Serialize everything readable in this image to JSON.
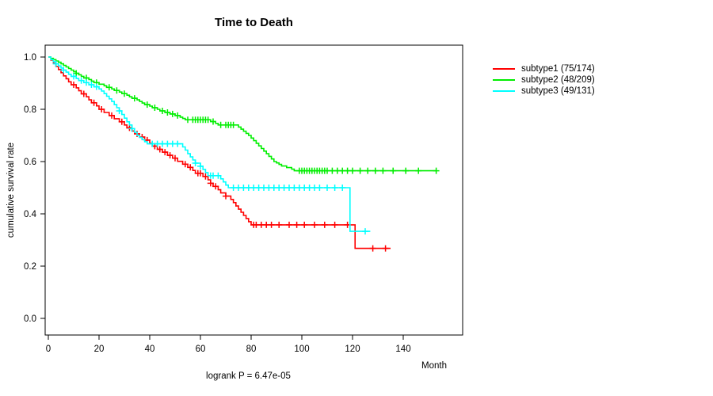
{
  "chart_data": {
    "type": "line",
    "subtype": "kaplan-meier-step-curves",
    "title": "Time to Death",
    "xlabel": "Month",
    "ylabel": "cumulative survival rate",
    "xlim": [
      0,
      155
    ],
    "ylim": [
      0.0,
      1.0
    ],
    "x_ticks": [
      "0",
      "20",
      "40",
      "60",
      "80",
      "100",
      "120",
      "140"
    ],
    "y_ticks": [
      "0.0",
      "0.2",
      "0.4",
      "0.6",
      "0.8",
      "1.0"
    ],
    "annotation": "logrank P = 6.47e-05",
    "legend_position": "right",
    "grid": false,
    "series": [
      {
        "name": "subtype1 (75/174)",
        "color": "#ff0000",
        "steps": [
          [
            0,
            1.0
          ],
          [
            1,
            0.988
          ],
          [
            2,
            0.976
          ],
          [
            3,
            0.964
          ],
          [
            4,
            0.952
          ],
          [
            5,
            0.94
          ],
          [
            6,
            0.928
          ],
          [
            7,
            0.917
          ],
          [
            8,
            0.905
          ],
          [
            9,
            0.894
          ],
          [
            11,
            0.882
          ],
          [
            12,
            0.871
          ],
          [
            13,
            0.859
          ],
          [
            15,
            0.848
          ],
          [
            16,
            0.836
          ],
          [
            17,
            0.825
          ],
          [
            19,
            0.813
          ],
          [
            20,
            0.8
          ],
          [
            22,
            0.788
          ],
          [
            24,
            0.776
          ],
          [
            26,
            0.764
          ],
          [
            28,
            0.752
          ],
          [
            30,
            0.74
          ],
          [
            31,
            0.729
          ],
          [
            33,
            0.717
          ],
          [
            34,
            0.706
          ],
          [
            36,
            0.694
          ],
          [
            38,
            0.682
          ],
          [
            40,
            0.67
          ],
          [
            41,
            0.659
          ],
          [
            43,
            0.647
          ],
          [
            45,
            0.636
          ],
          [
            47,
            0.624
          ],
          [
            49,
            0.613
          ],
          [
            51,
            0.601
          ],
          [
            53,
            0.59
          ],
          [
            55,
            0.578
          ],
          [
            57,
            0.566
          ],
          [
            58,
            0.555
          ],
          [
            61,
            0.543
          ],
          [
            63,
            0.53
          ],
          [
            64,
            0.517
          ],
          [
            65,
            0.505
          ],
          [
            67,
            0.492
          ],
          [
            68,
            0.48
          ],
          [
            70,
            0.468
          ],
          [
            72,
            0.455
          ],
          [
            73,
            0.443
          ],
          [
            74,
            0.43
          ],
          [
            75,
            0.418
          ],
          [
            76,
            0.406
          ],
          [
            77,
            0.394
          ],
          [
            78,
            0.382
          ],
          [
            79,
            0.37
          ],
          [
            80,
            0.358
          ],
          [
            121,
            0.268
          ],
          [
            135,
            0.268
          ]
        ],
        "censor_months": [
          10,
          14,
          18,
          21,
          25,
          29,
          32,
          35,
          37,
          39,
          42,
          44,
          46,
          48,
          50,
          54,
          56,
          59,
          60,
          62,
          64,
          66,
          70,
          81,
          82,
          84,
          86,
          88,
          91,
          95,
          98,
          101,
          105,
          109,
          113,
          118,
          128,
          133
        ]
      },
      {
        "name": "subtype2 (48/209)",
        "color": "#00ee00",
        "steps": [
          [
            0,
            1.0
          ],
          [
            1,
            0.995
          ],
          [
            2,
            0.99
          ],
          [
            3,
            0.985
          ],
          [
            4,
            0.98
          ],
          [
            5,
            0.974
          ],
          [
            6,
            0.968
          ],
          [
            7,
            0.962
          ],
          [
            8,
            0.956
          ],
          [
            9,
            0.95
          ],
          [
            10,
            0.944
          ],
          [
            11,
            0.938
          ],
          [
            12,
            0.932
          ],
          [
            13,
            0.926
          ],
          [
            14,
            0.92
          ],
          [
            16,
            0.914
          ],
          [
            17,
            0.908
          ],
          [
            18,
            0.902
          ],
          [
            20,
            0.896
          ],
          [
            22,
            0.89
          ],
          [
            23,
            0.884
          ],
          [
            25,
            0.878
          ],
          [
            26,
            0.872
          ],
          [
            28,
            0.866
          ],
          [
            29,
            0.86
          ],
          [
            31,
            0.854
          ],
          [
            32,
            0.848
          ],
          [
            33,
            0.842
          ],
          [
            35,
            0.836
          ],
          [
            36,
            0.83
          ],
          [
            37,
            0.824
          ],
          [
            38,
            0.818
          ],
          [
            40,
            0.812
          ],
          [
            41,
            0.806
          ],
          [
            43,
            0.8
          ],
          [
            44,
            0.794
          ],
          [
            46,
            0.788
          ],
          [
            48,
            0.782
          ],
          [
            50,
            0.776
          ],
          [
            52,
            0.77
          ],
          [
            53,
            0.765
          ],
          [
            54,
            0.76
          ],
          [
            64,
            0.753
          ],
          [
            66,
            0.746
          ],
          [
            67,
            0.74
          ],
          [
            75,
            0.732
          ],
          [
            76,
            0.724
          ],
          [
            77,
            0.716
          ],
          [
            78,
            0.708
          ],
          [
            79,
            0.7
          ],
          [
            80,
            0.69
          ],
          [
            81,
            0.68
          ],
          [
            82,
            0.67
          ],
          [
            83,
            0.66
          ],
          [
            84,
            0.65
          ],
          [
            85,
            0.64
          ],
          [
            86,
            0.63
          ],
          [
            87,
            0.62
          ],
          [
            88,
            0.61
          ],
          [
            89,
            0.6
          ],
          [
            90,
            0.595
          ],
          [
            91,
            0.589
          ],
          [
            92,
            0.583
          ],
          [
            94,
            0.577
          ],
          [
            96,
            0.571
          ],
          [
            97,
            0.565
          ],
          [
            153,
            0.565
          ]
        ],
        "censor_months": [
          11,
          15,
          19,
          24,
          27,
          30,
          34,
          39,
          42,
          45,
          47,
          49,
          51,
          55,
          57,
          58,
          59,
          60,
          61,
          62,
          63,
          65,
          68,
          70,
          71,
          72,
          73,
          99,
          100,
          101,
          102,
          103,
          104,
          105,
          106,
          107,
          108,
          109,
          110,
          112,
          114,
          116,
          118,
          120,
          123,
          126,
          129,
          132,
          136,
          141,
          146,
          153
        ]
      },
      {
        "name": "subtype3 (49/131)",
        "color": "#00ffff",
        "steps": [
          [
            0,
            1.0
          ],
          [
            1,
            0.99
          ],
          [
            2,
            0.982
          ],
          [
            3,
            0.974
          ],
          [
            4,
            0.966
          ],
          [
            5,
            0.958
          ],
          [
            6,
            0.95
          ],
          [
            7,
            0.942
          ],
          [
            8,
            0.934
          ],
          [
            9,
            0.926
          ],
          [
            11,
            0.918
          ],
          [
            12,
            0.91
          ],
          [
            14,
            0.902
          ],
          [
            16,
            0.894
          ],
          [
            18,
            0.886
          ],
          [
            20,
            0.878
          ],
          [
            21,
            0.87
          ],
          [
            22,
            0.86
          ],
          [
            23,
            0.85
          ],
          [
            24,
            0.84
          ],
          [
            25,
            0.83
          ],
          [
            26,
            0.818
          ],
          [
            27,
            0.806
          ],
          [
            28,
            0.794
          ],
          [
            29,
            0.78
          ],
          [
            30,
            0.766
          ],
          [
            31,
            0.752
          ],
          [
            32,
            0.74
          ],
          [
            33,
            0.726
          ],
          [
            34,
            0.712
          ],
          [
            35,
            0.7
          ],
          [
            36,
            0.692
          ],
          [
            37,
            0.684
          ],
          [
            38,
            0.676
          ],
          [
            39,
            0.668
          ],
          [
            53,
            0.656
          ],
          [
            54,
            0.644
          ],
          [
            55,
            0.63
          ],
          [
            56,
            0.618
          ],
          [
            57,
            0.606
          ],
          [
            58,
            0.594
          ],
          [
            60,
            0.582
          ],
          [
            61,
            0.57
          ],
          [
            62,
            0.558
          ],
          [
            63,
            0.546
          ],
          [
            68,
            0.534
          ],
          [
            69,
            0.522
          ],
          [
            70,
            0.51
          ],
          [
            71,
            0.5
          ],
          [
            119,
            0.333
          ],
          [
            127,
            0.333
          ]
        ],
        "censor_months": [
          3,
          6,
          10,
          13,
          15,
          17,
          19,
          28,
          33,
          41,
          43,
          45,
          47,
          49,
          51,
          58,
          60,
          64,
          65,
          67,
          73,
          75,
          77,
          79,
          81,
          83,
          85,
          87,
          89,
          91,
          93,
          95,
          97,
          99,
          101,
          103,
          105,
          107,
          110,
          113,
          116,
          125
        ]
      }
    ]
  }
}
